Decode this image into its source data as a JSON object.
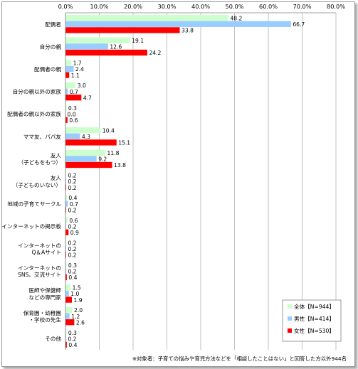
{
  "chart_data": {
    "type": "bar",
    "orientation": "horizontal",
    "xlim": [
      0,
      80
    ],
    "x_ticks": [
      "0.0%",
      "10.0%",
      "20.0%",
      "30.0%",
      "40.0%",
      "50.0%",
      "60.0%",
      "70.0%",
      "80.0%"
    ],
    "grid": true,
    "legend_position": "bottom-right",
    "categories": [
      [
        "配偶者"
      ],
      [
        "自分の親"
      ],
      [
        "配偶者の親"
      ],
      [
        "自分の親以外の家族"
      ],
      [
        "配偶者の親以外の家族"
      ],
      [
        "ママ友、パパ友"
      ],
      [
        "友人",
        "（子どもをもつ）"
      ],
      [
        "友人",
        "（子どものいない）"
      ],
      [
        "地域の子育てサークル"
      ],
      [
        "インターネットの掲示板"
      ],
      [
        "インターネットの",
        "Q＆Aサイト"
      ],
      [
        "インターネットの",
        "SNS、交流サイト"
      ],
      [
        "医師や保健師",
        "などの専門家"
      ],
      [
        "保育園・幼稚園",
        "・学校の先生"
      ],
      [
        "その他"
      ]
    ],
    "series": [
      {
        "name": "全体【N=944】",
        "color": "#ccffcc",
        "values": [
          48.2,
          19.1,
          1.7,
          3.0,
          0.3,
          10.4,
          11.8,
          0.2,
          0.4,
          0.6,
          0.2,
          0.3,
          1.5,
          2.0,
          0.3
        ]
      },
      {
        "name": "男性【N=414】",
        "color": "#99ccff",
        "values": [
          66.7,
          12.6,
          2.4,
          0.7,
          0.0,
          4.3,
          9.2,
          0.2,
          0.7,
          0.2,
          0.2,
          0.2,
          1.0,
          1.2,
          0.2
        ]
      },
      {
        "name": "女性【N=530】",
        "color": "#ff0000",
        "values": [
          33.8,
          24.2,
          1.1,
          4.7,
          0.6,
          15.1,
          13.8,
          0.2,
          0.2,
          0.9,
          0.2,
          0.4,
          1.9,
          2.6,
          0.4
        ]
      }
    ]
  },
  "footnote": "※対象者：子育ての悩みや育児方法などを「相談したことはない」と回答した方以外944名"
}
